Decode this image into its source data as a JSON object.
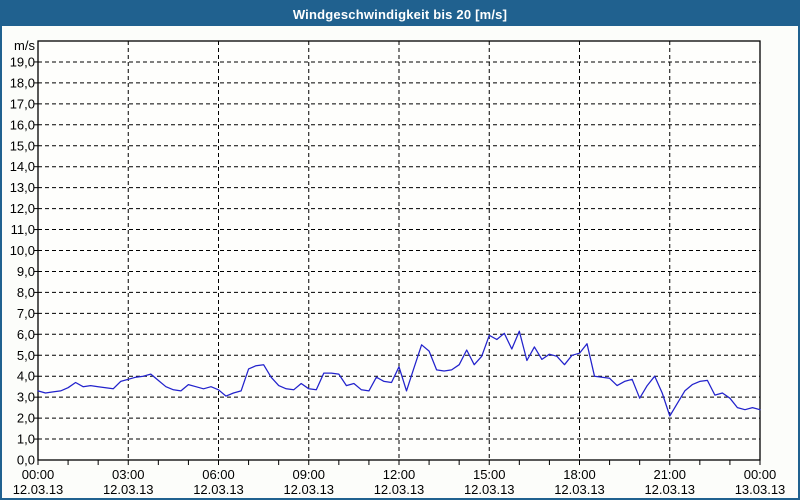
{
  "window": {
    "title": "Windgeschwindigkeit bis 20 [m/s]",
    "title_bar_color": "#20618f",
    "border_color": "#20618f",
    "background_color": "#fcfdfa",
    "plot_background_color": "#fefefc"
  },
  "chart_data": {
    "type": "line",
    "title": "Windgeschwindigkeit bis 20 [m/s]",
    "ylabel": "m/s",
    "ylim": [
      0,
      20
    ],
    "ytick_interval": 1.0,
    "ytick_labels": [
      "0,0",
      "1,0",
      "2,0",
      "3,0",
      "4,0",
      "5,0",
      "6,0",
      "7,0",
      "8,0",
      "9,0",
      "10,0",
      "11,0",
      "12,0",
      "13,0",
      "14,0",
      "15,0",
      "16,0",
      "17,0",
      "18,0",
      "19,0"
    ],
    "grid": "dashed",
    "grid_color": "#000000",
    "legend": "none",
    "line_color": "#2222cc",
    "x_start_hour": 0,
    "x_end_hour": 24,
    "sample_interval_hours": 0.25,
    "minor_tick_interval_hours": 1,
    "major_tick_interval_hours": 3,
    "x_major_ticks": [
      {
        "time": "00:00",
        "date": "12.03.13"
      },
      {
        "time": "03:00",
        "date": "12.03.13"
      },
      {
        "time": "06:00",
        "date": "12.03.13"
      },
      {
        "time": "09:00",
        "date": "12.03.13"
      },
      {
        "time": "12:00",
        "date": "12.03.13"
      },
      {
        "time": "15:00",
        "date": "12.03.13"
      },
      {
        "time": "18:00",
        "date": "12.03.13"
      },
      {
        "time": "21:00",
        "date": "12.03.13"
      },
      {
        "time": "00:00",
        "date": "13.03.13"
      }
    ],
    "values_m_s": [
      3.3,
      3.2,
      3.25,
      3.3,
      3.45,
      3.7,
      3.5,
      3.55,
      3.5,
      3.45,
      3.4,
      3.75,
      3.85,
      3.95,
      4.0,
      4.1,
      3.8,
      3.5,
      3.35,
      3.3,
      3.6,
      3.5,
      3.4,
      3.5,
      3.35,
      3.05,
      3.2,
      3.3,
      4.35,
      4.5,
      4.55,
      3.95,
      3.55,
      3.4,
      3.35,
      3.65,
      3.4,
      3.35,
      4.15,
      4.15,
      4.1,
      3.55,
      3.65,
      3.35,
      3.3,
      3.95,
      3.75,
      3.7,
      4.45,
      3.3,
      4.4,
      5.5,
      5.2,
      4.3,
      4.25,
      4.3,
      4.55,
      5.25,
      4.55,
      4.95,
      5.95,
      5.75,
      6.05,
      5.3,
      6.15,
      4.75,
      5.4,
      4.8,
      5.05,
      4.95,
      4.55,
      5.0,
      5.1,
      5.55,
      4.0,
      3.95,
      3.9,
      3.55,
      3.75,
      3.85,
      2.95,
      3.55,
      4.0,
      3.2,
      2.1,
      2.7,
      3.3,
      3.6,
      3.75,
      3.8,
      3.1,
      3.2,
      2.95,
      2.5,
      2.4,
      2.5,
      2.4
    ]
  }
}
